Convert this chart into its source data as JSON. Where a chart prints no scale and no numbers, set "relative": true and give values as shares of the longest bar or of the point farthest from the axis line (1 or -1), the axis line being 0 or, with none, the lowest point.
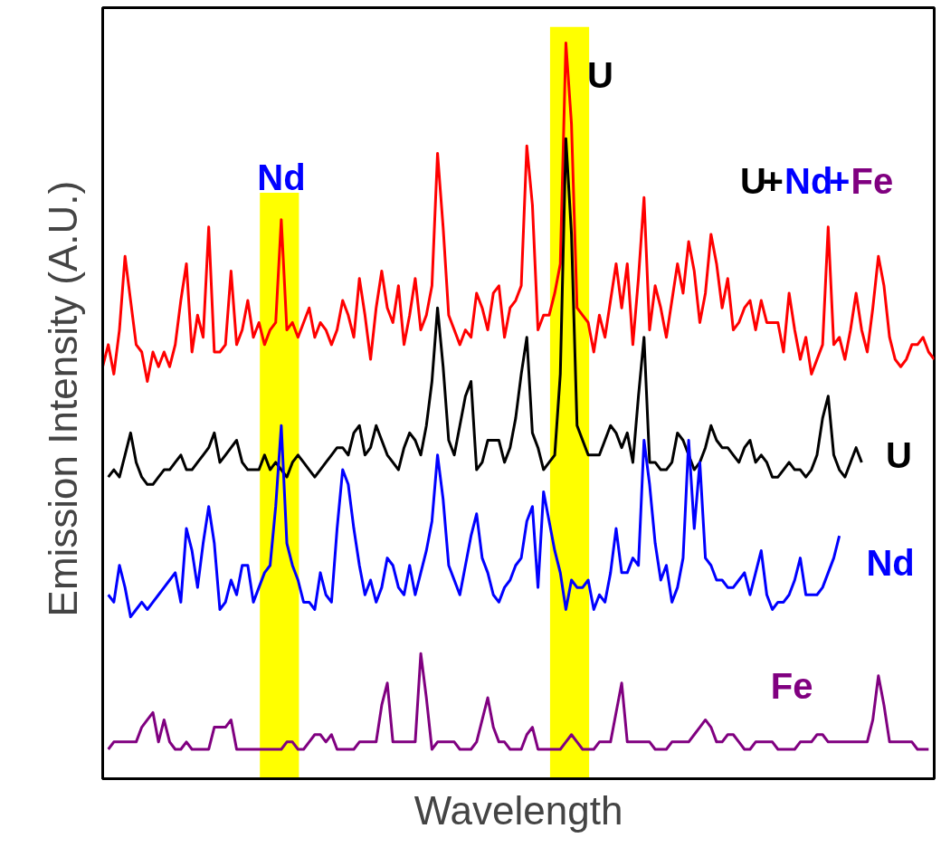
{
  "chart_data": {
    "type": "line",
    "relative": true,
    "xlabel": "Wavelength",
    "ylabel": "Emission Intensity  (A.U.)",
    "categories": [
      null,
      null,
      null,
      null,
      null,
      null,
      null,
      null,
      null,
      null,
      null,
      null,
      null,
      null,
      null,
      null,
      null,
      null,
      null,
      null,
      null,
      null,
      null,
      null,
      null,
      null,
      null,
      null,
      null,
      null,
      null,
      null,
      null,
      null,
      null,
      null,
      null,
      null,
      null,
      null,
      null,
      null,
      null,
      null,
      null,
      null,
      null,
      null,
      null,
      null,
      null,
      null,
      null,
      null,
      null,
      null,
      null,
      null,
      null,
      null,
      null,
      null,
      null,
      null,
      null,
      null,
      null,
      null,
      null,
      null,
      null,
      null,
      null,
      null,
      null,
      null,
      null,
      null,
      null,
      null,
      null,
      null,
      null,
      null,
      null,
      null,
      null,
      null,
      null,
      null,
      null,
      null,
      null,
      null,
      null,
      null,
      null,
      null,
      null,
      null,
      null,
      null,
      null,
      null,
      null,
      null,
      null,
      null,
      null,
      null,
      null,
      null,
      null,
      null,
      null,
      null,
      null,
      null,
      null,
      null,
      null,
      null,
      null,
      null,
      null,
      null,
      null,
      null,
      null,
      null,
      null,
      null,
      null,
      null,
      null,
      null,
      null,
      null,
      null,
      null,
      null,
      null,
      null,
      null,
      null,
      null,
      null,
      null,
      null,
      null
    ],
    "annotations": [
      "Nd",
      "U",
      "U+Nd+Fe"
    ],
    "series": [
      {
        "color": "#ff0000",
        "values": [
          0.56,
          0.59,
          0.55,
          0.61,
          0.71,
          0.65,
          0.59,
          0.58,
          0.54,
          0.58,
          0.56,
          0.58,
          0.56,
          0.59,
          0.65,
          0.7,
          0.58,
          0.63,
          0.6,
          0.75,
          0.58,
          0.58,
          0.59,
          0.69,
          0.59,
          0.61,
          0.65,
          0.6,
          0.62,
          0.59,
          0.61,
          0.62,
          0.76,
          0.61,
          0.62,
          0.6,
          0.62,
          0.64,
          0.6,
          0.62,
          0.61,
          0.59,
          0.61,
          0.65,
          0.63,
          0.6,
          0.68,
          0.63,
          0.57,
          0.64,
          0.69,
          0.64,
          0.62,
          0.67,
          0.59,
          0.63,
          0.68,
          0.61,
          0.63,
          0.67,
          0.85,
          0.75,
          0.63,
          0.61,
          0.59,
          0.61,
          0.6,
          0.66,
          0.64,
          0.61,
          0.66,
          0.67,
          0.6,
          0.64,
          0.65,
          0.67,
          0.86,
          0.78,
          0.61,
          0.63,
          0.63,
          0.66,
          0.7,
          1.0,
          0.89,
          0.64,
          0.63,
          0.62,
          0.58,
          0.63,
          0.6,
          0.65,
          0.7,
          0.64,
          0.7,
          0.59,
          0.68,
          0.79,
          0.61,
          0.67,
          0.64,
          0.6,
          0.65,
          0.7,
          0.66,
          0.73,
          0.69,
          0.62,
          0.66,
          0.74,
          0.7,
          0.64,
          0.68,
          0.61,
          0.62,
          0.64,
          0.65,
          0.61,
          0.65,
          0.62,
          0.62,
          0.62,
          0.58,
          0.66,
          0.61,
          0.57,
          0.6,
          0.55,
          0.57,
          0.59,
          0.75,
          0.59,
          0.6,
          0.57,
          0.61,
          0.66,
          0.61,
          0.58,
          0.64,
          0.71,
          0.67,
          0.6,
          0.57,
          0.56,
          0.57,
          0.59,
          0.59,
          0.6,
          0.58,
          0.57
        ]
      },
      {
        "name": "U",
        "color": "#000000",
        "values": [
          null,
          0.41,
          0.42,
          0.41,
          0.44,
          0.47,
          0.43,
          0.41,
          0.4,
          0.4,
          0.41,
          0.42,
          0.42,
          0.43,
          0.44,
          0.42,
          0.42,
          0.43,
          0.44,
          0.45,
          0.47,
          0.43,
          0.44,
          0.45,
          0.46,
          0.43,
          0.42,
          0.42,
          0.42,
          0.44,
          0.42,
          0.43,
          0.42,
          0.41,
          0.43,
          0.44,
          0.43,
          0.42,
          0.41,
          0.42,
          0.43,
          0.44,
          0.45,
          0.45,
          0.44,
          0.47,
          0.48,
          0.44,
          0.45,
          0.48,
          0.46,
          0.44,
          0.43,
          0.42,
          0.45,
          0.47,
          0.46,
          0.44,
          0.48,
          0.54,
          0.64,
          0.56,
          0.46,
          0.44,
          0.48,
          0.52,
          0.54,
          0.42,
          0.43,
          0.46,
          0.46,
          0.46,
          0.43,
          0.45,
          0.49,
          0.55,
          0.6,
          0.47,
          0.45,
          0.42,
          0.43,
          0.44,
          0.55,
          0.87,
          0.74,
          0.48,
          0.46,
          0.44,
          0.44,
          0.44,
          0.46,
          0.48,
          0.47,
          0.45,
          0.47,
          0.43,
          0.52,
          0.6,
          0.43,
          0.43,
          0.42,
          0.42,
          0.43,
          0.47,
          0.46,
          0.44,
          0.42,
          0.43,
          0.45,
          0.48,
          0.46,
          0.45,
          0.45,
          0.44,
          0.43,
          0.45,
          0.46,
          0.43,
          0.44,
          0.43,
          0.41,
          0.41,
          0.42,
          0.43,
          0.42,
          0.42,
          0.41,
          0.42,
          0.44,
          0.49,
          0.52,
          0.44,
          0.42,
          0.41,
          0.43,
          0.45,
          0.43,
          null,
          null,
          null,
          null,
          null,
          null,
          null,
          null,
          null,
          null,
          null,
          null,
          null
        ]
      },
      {
        "name": "Nd",
        "color": "#0000ff",
        "values": [
          null,
          0.25,
          0.24,
          0.29,
          0.26,
          0.22,
          0.23,
          0.24,
          0.23,
          0.24,
          0.25,
          0.26,
          0.27,
          0.28,
          0.24,
          0.34,
          0.31,
          0.26,
          0.32,
          0.37,
          0.32,
          0.23,
          0.24,
          0.27,
          0.25,
          0.29,
          0.29,
          0.24,
          0.26,
          0.28,
          0.29,
          0.37,
          0.48,
          0.32,
          0.29,
          0.27,
          0.24,
          0.24,
          0.23,
          0.28,
          0.25,
          0.24,
          0.34,
          0.42,
          0.4,
          0.34,
          0.29,
          0.25,
          0.27,
          0.24,
          0.26,
          0.3,
          0.29,
          0.26,
          0.25,
          0.29,
          0.25,
          0.28,
          0.31,
          0.35,
          0.44,
          0.38,
          0.29,
          0.27,
          0.25,
          0.29,
          0.33,
          0.36,
          0.3,
          0.28,
          0.25,
          0.24,
          0.26,
          0.27,
          0.29,
          0.3,
          0.35,
          0.37,
          0.26,
          0.39,
          0.35,
          0.31,
          0.28,
          0.23,
          0.27,
          0.26,
          0.26,
          0.27,
          0.23,
          0.25,
          0.24,
          0.28,
          0.34,
          0.28,
          0.28,
          0.3,
          0.29,
          0.46,
          0.4,
          0.32,
          0.27,
          0.29,
          0.24,
          0.26,
          0.3,
          0.46,
          0.34,
          0.43,
          0.3,
          0.29,
          0.27,
          0.27,
          0.26,
          0.26,
          0.27,
          0.28,
          0.25,
          0.28,
          0.31,
          0.25,
          0.23,
          0.24,
          0.24,
          0.25,
          0.27,
          0.3,
          0.25,
          0.25,
          0.25,
          0.26,
          0.28,
          0.3,
          0.33,
          null,
          null,
          null,
          null,
          null,
          null,
          null,
          null,
          null,
          null,
          null,
          null,
          null,
          null,
          null,
          null,
          null
        ]
      },
      {
        "name": "Fe",
        "color": "#800080",
        "values": [
          null,
          0.04,
          0.05,
          0.05,
          0.05,
          0.05,
          0.05,
          0.07,
          0.08,
          0.09,
          0.05,
          0.08,
          0.05,
          0.04,
          0.04,
          0.05,
          0.04,
          0.04,
          0.04,
          0.04,
          0.07,
          0.07,
          0.07,
          0.08,
          0.04,
          0.04,
          0.04,
          0.04,
          0.04,
          0.04,
          0.04,
          0.04,
          0.04,
          0.05,
          0.05,
          0.04,
          0.04,
          0.05,
          0.06,
          0.06,
          0.05,
          0.06,
          0.04,
          0.04,
          0.04,
          0.04,
          0.05,
          0.05,
          0.05,
          0.05,
          0.1,
          0.13,
          0.05,
          0.05,
          0.05,
          0.05,
          0.05,
          0.17,
          0.11,
          0.04,
          0.05,
          0.05,
          0.05,
          0.05,
          0.04,
          0.04,
          0.04,
          0.05,
          0.08,
          0.11,
          0.07,
          0.05,
          0.05,
          0.04,
          0.04,
          0.04,
          0.06,
          0.07,
          0.04,
          0.04,
          0.04,
          0.04,
          0.04,
          0.05,
          0.06,
          0.05,
          0.04,
          0.04,
          0.04,
          0.05,
          0.05,
          0.05,
          0.09,
          0.13,
          0.05,
          0.05,
          0.05,
          0.05,
          0.05,
          0.04,
          0.04,
          0.04,
          0.05,
          0.05,
          0.05,
          0.05,
          0.06,
          0.07,
          0.08,
          0.07,
          0.05,
          0.05,
          0.06,
          0.06,
          0.05,
          0.04,
          0.04,
          0.05,
          0.05,
          0.05,
          0.05,
          0.04,
          0.04,
          0.04,
          0.04,
          0.05,
          0.05,
          0.05,
          0.06,
          0.06,
          0.05,
          0.05,
          0.05,
          0.05,
          0.05,
          0.05,
          0.05,
          0.05,
          0.08,
          0.14,
          0.1,
          0.05,
          0.05,
          0.05,
          0.05,
          0.05,
          0.04,
          0.04,
          0.04,
          null
        ]
      }
    ]
  }
}
